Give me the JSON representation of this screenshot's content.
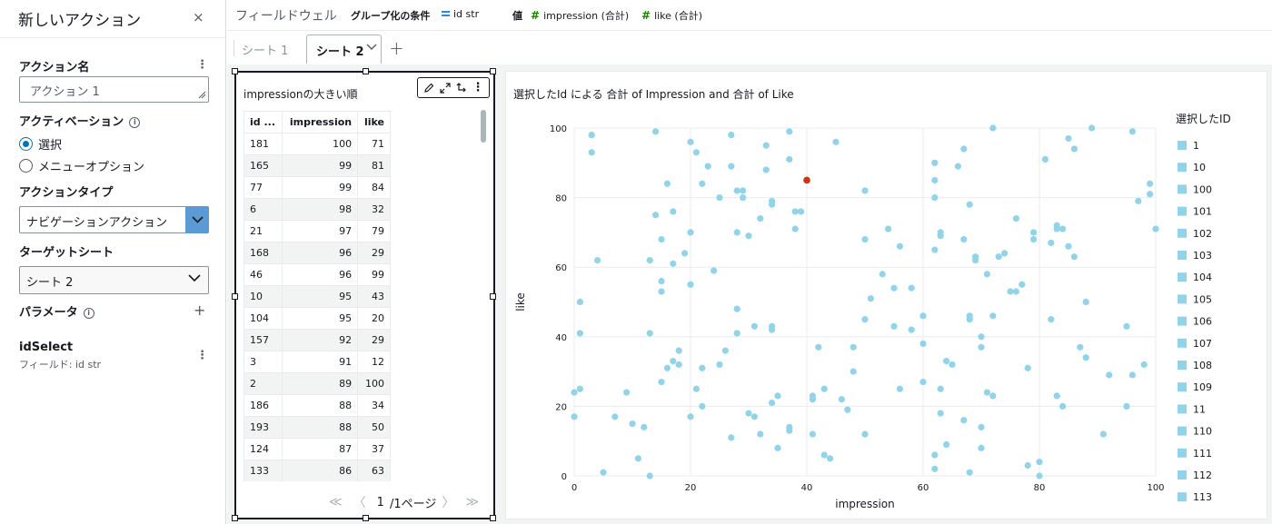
{
  "panel": {
    "title": "新しいアクション",
    "close": "×",
    "name_label": "アクション名",
    "name_value": "アクション 1",
    "activation_label": "アクティベーション",
    "activation_options": [
      "選択",
      "メニューオプション"
    ],
    "action_type_label": "アクションタイプ",
    "action_type_value": "ナビゲーションアクション",
    "target_label": "ターゲットシート",
    "target_value": "シート 2",
    "param_label": "パラメータ",
    "param_add": "+",
    "param_name": "idSelect",
    "param_field": "フィールド: id str"
  },
  "fieldwell": {
    "title": "フィールドウェル",
    "group_label": "グループ化の条件",
    "group_field": "id str",
    "value_label": "値",
    "value_fields": [
      "impression (合計)",
      "like (合計)"
    ]
  },
  "tabs": {
    "tab1": "シート 1",
    "tab2": "シート 2",
    "add": "+"
  },
  "table_visual": {
    "title": "impressionの大きい順",
    "columns": [
      "id ...",
      "impression",
      "like"
    ],
    "rows": [
      [
        "181",
        "100",
        "71"
      ],
      [
        "165",
        "99",
        "81"
      ],
      [
        "77",
        "99",
        "84"
      ],
      [
        "6",
        "98",
        "32"
      ],
      [
        "21",
        "97",
        "79"
      ],
      [
        "168",
        "96",
        "29"
      ],
      [
        "46",
        "96",
        "99"
      ],
      [
        "10",
        "95",
        "43"
      ],
      [
        "104",
        "95",
        "20"
      ],
      [
        "157",
        "92",
        "29"
      ],
      [
        "3",
        "91",
        "12"
      ],
      [
        "2",
        "89",
        "100"
      ],
      [
        "186",
        "88",
        "34"
      ],
      [
        "193",
        "88",
        "50"
      ],
      [
        "124",
        "87",
        "37"
      ],
      [
        "133",
        "86",
        "63"
      ]
    ],
    "pager_first": "≪",
    "pager_prev": "〈",
    "pager_page": "1",
    "pager_total": "/1ページ",
    "pager_next": "〉",
    "pager_last": "≫"
  },
  "scatter_visual": {
    "title": "選択したId による 合計 of Impression and 合計 of Like"
  },
  "colors": {
    "point": "#91d4ea",
    "highlight": "#d13212",
    "accent": "#0073bb"
  },
  "chart_data": {
    "type": "scatter",
    "title": "選択したId による 合計 of Impression and 合計 of Like",
    "xlabel": "impression",
    "ylabel": "like",
    "xlim": [
      0,
      100
    ],
    "ylim": [
      0,
      100
    ],
    "xticks": [
      0,
      20,
      40,
      60,
      80,
      100
    ],
    "yticks": [
      0,
      20,
      40,
      60,
      80,
      100
    ],
    "grid": true,
    "legend_title": "選択したID",
    "legend_position": "right",
    "legend": [
      "1",
      "10",
      "100",
      "101",
      "102",
      "103",
      "104",
      "105",
      "106",
      "107",
      "108",
      "109",
      "11",
      "110",
      "111",
      "112",
      "113"
    ],
    "highlight": {
      "x": 40,
      "y": 85
    },
    "points": [
      [
        100,
        71
      ],
      [
        99,
        81
      ],
      [
        99,
        84
      ],
      [
        98,
        32
      ],
      [
        97,
        79
      ],
      [
        96,
        29
      ],
      [
        96,
        99
      ],
      [
        95,
        43
      ],
      [
        95,
        20
      ],
      [
        92,
        29
      ],
      [
        91,
        12
      ],
      [
        89,
        100
      ],
      [
        88,
        34
      ],
      [
        88,
        50
      ],
      [
        87,
        37
      ],
      [
        86,
        63
      ],
      [
        0,
        17
      ],
      [
        0,
        24
      ],
      [
        1,
        25
      ],
      [
        1,
        50
      ],
      [
        1,
        41
      ],
      [
        3,
        98
      ],
      [
        3,
        93
      ],
      [
        4,
        62
      ],
      [
        5,
        1
      ],
      [
        7,
        17
      ],
      [
        9,
        24
      ],
      [
        10,
        15
      ],
      [
        11,
        5
      ],
      [
        12,
        14
      ],
      [
        13,
        0
      ],
      [
        13,
        41
      ],
      [
        13,
        62
      ],
      [
        14,
        99
      ],
      [
        14,
        75
      ],
      [
        15,
        56
      ],
      [
        15,
        53
      ],
      [
        15,
        68
      ],
      [
        15,
        27
      ],
      [
        16,
        84
      ],
      [
        16,
        31
      ],
      [
        17,
        33
      ],
      [
        17,
        61
      ],
      [
        17,
        76
      ],
      [
        18,
        36
      ],
      [
        18,
        32
      ],
      [
        19,
        64
      ],
      [
        20,
        96
      ],
      [
        20,
        70
      ],
      [
        20,
        55
      ],
      [
        20,
        17
      ],
      [
        21,
        93
      ],
      [
        21,
        25
      ],
      [
        22,
        84
      ],
      [
        22,
        31
      ],
      [
        22,
        20
      ],
      [
        23,
        89
      ],
      [
        24,
        59
      ],
      [
        25,
        80
      ],
      [
        25,
        32
      ],
      [
        26,
        36
      ],
      [
        27,
        11
      ],
      [
        27,
        98
      ],
      [
        27,
        89
      ],
      [
        28,
        82
      ],
      [
        28,
        70
      ],
      [
        28,
        48
      ],
      [
        28,
        41
      ],
      [
        29,
        82
      ],
      [
        29,
        80
      ],
      [
        30,
        18
      ],
      [
        30,
        69
      ],
      [
        31,
        17
      ],
      [
        31,
        43
      ],
      [
        32,
        74
      ],
      [
        32,
        12
      ],
      [
        33,
        88
      ],
      [
        33,
        95
      ],
      [
        34,
        79
      ],
      [
        34,
        78
      ],
      [
        34,
        43
      ],
      [
        34,
        42
      ],
      [
        34,
        21
      ],
      [
        35,
        23
      ],
      [
        35,
        8
      ],
      [
        37,
        99
      ],
      [
        37,
        91
      ],
      [
        37,
        14
      ],
      [
        37,
        13
      ],
      [
        38,
        76
      ],
      [
        38,
        71
      ],
      [
        39,
        76
      ],
      [
        41,
        23
      ],
      [
        41,
        22
      ],
      [
        41,
        12
      ],
      [
        42,
        37
      ],
      [
        43,
        25
      ],
      [
        43,
        6
      ],
      [
        44,
        5
      ],
      [
        45,
        96
      ],
      [
        46,
        22
      ],
      [
        47,
        19
      ],
      [
        48,
        37
      ],
      [
        48,
        30
      ],
      [
        50,
        82
      ],
      [
        50,
        68
      ],
      [
        50,
        45
      ],
      [
        50,
        12
      ],
      [
        51,
        51
      ],
      [
        53,
        58
      ],
      [
        54,
        71
      ],
      [
        55,
        54
      ],
      [
        55,
        43
      ],
      [
        56,
        66
      ],
      [
        56,
        25
      ],
      [
        58,
        54
      ],
      [
        58,
        42
      ],
      [
        60,
        46
      ],
      [
        60,
        38
      ],
      [
        60,
        27
      ],
      [
        62,
        90
      ],
      [
        62,
        85
      ],
      [
        62,
        80
      ],
      [
        62,
        65
      ],
      [
        62,
        6
      ],
      [
        62,
        2
      ],
      [
        63,
        70
      ],
      [
        63,
        69
      ],
      [
        63,
        25
      ],
      [
        63,
        18
      ],
      [
        64,
        9
      ],
      [
        64,
        33
      ],
      [
        65,
        32
      ],
      [
        66,
        89
      ],
      [
        67,
        94
      ],
      [
        67,
        68
      ],
      [
        67,
        16
      ],
      [
        68,
        1
      ],
      [
        68,
        46
      ],
      [
        68,
        45
      ],
      [
        68,
        78
      ],
      [
        69,
        63
      ],
      [
        69,
        62
      ],
      [
        70,
        14
      ],
      [
        70,
        40
      ],
      [
        70,
        37
      ],
      [
        70,
        8
      ],
      [
        71,
        58
      ],
      [
        71,
        24
      ],
      [
        72,
        100
      ],
      [
        72,
        46
      ],
      [
        72,
        23
      ],
      [
        73,
        63
      ],
      [
        74,
        64
      ],
      [
        75,
        53
      ],
      [
        76,
        74
      ],
      [
        76,
        53
      ],
      [
        77,
        55
      ],
      [
        78,
        31
      ],
      [
        78,
        3
      ],
      [
        79,
        68
      ],
      [
        79,
        70
      ],
      [
        80,
        4
      ],
      [
        80,
        0
      ],
      [
        81,
        91
      ],
      [
        82,
        45
      ],
      [
        82,
        67
      ],
      [
        83,
        71
      ],
      [
        83,
        72
      ],
      [
        83,
        23
      ],
      [
        84,
        71
      ],
      [
        84,
        20
      ],
      [
        85,
        66
      ],
      [
        85,
        97
      ],
      [
        86,
        94
      ]
    ]
  }
}
